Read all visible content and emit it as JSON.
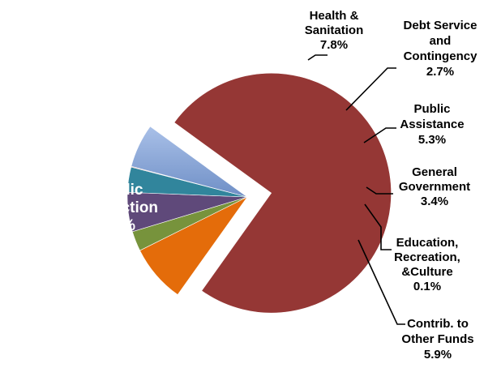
{
  "chart_data": {
    "type": "pie",
    "title": "",
    "legend": "none",
    "slices": [
      {
        "label": "Public Protection",
        "lines": [
          "Public",
          "Protection"
        ],
        "value": 75,
        "value_label": "75%",
        "color": "#953735",
        "exploded": true
      },
      {
        "label": "Health & Sanitation",
        "lines": [
          "Health &",
          "Sanitation"
        ],
        "value": 7.8,
        "value_label": "7.8%",
        "color": "#e46c0a",
        "exploded": false
      },
      {
        "label": "Debt Service and Contingency",
        "lines": [
          "Debt Service",
          "and",
          "Contingency"
        ],
        "value": 2.7,
        "value_label": "2.7%",
        "color": "#77933c",
        "exploded": false
      },
      {
        "label": "Public Assistance",
        "lines": [
          "Public",
          "Assistance"
        ],
        "value": 5.3,
        "value_label": "5.3%",
        "color": "#5f497a",
        "exploded": false
      },
      {
        "label": "General Government",
        "lines": [
          "General",
          "Government"
        ],
        "value": 3.4,
        "value_label": "3.4%",
        "color": "#31859c",
        "exploded": false
      },
      {
        "label": "Education, Recreation, &Culture",
        "lines": [
          "Education,",
          "Recreation,",
          "&Culture"
        ],
        "value": 0.1,
        "value_label": "0.1%",
        "color": "#c0504d",
        "exploded": false
      },
      {
        "label": "Contrib. to Other Funds",
        "lines": [
          "Contrib. to",
          "Other Funds"
        ],
        "value": 5.9,
        "value_label": "5.9%",
        "color": "#8eaadb",
        "exploded": false
      }
    ]
  }
}
